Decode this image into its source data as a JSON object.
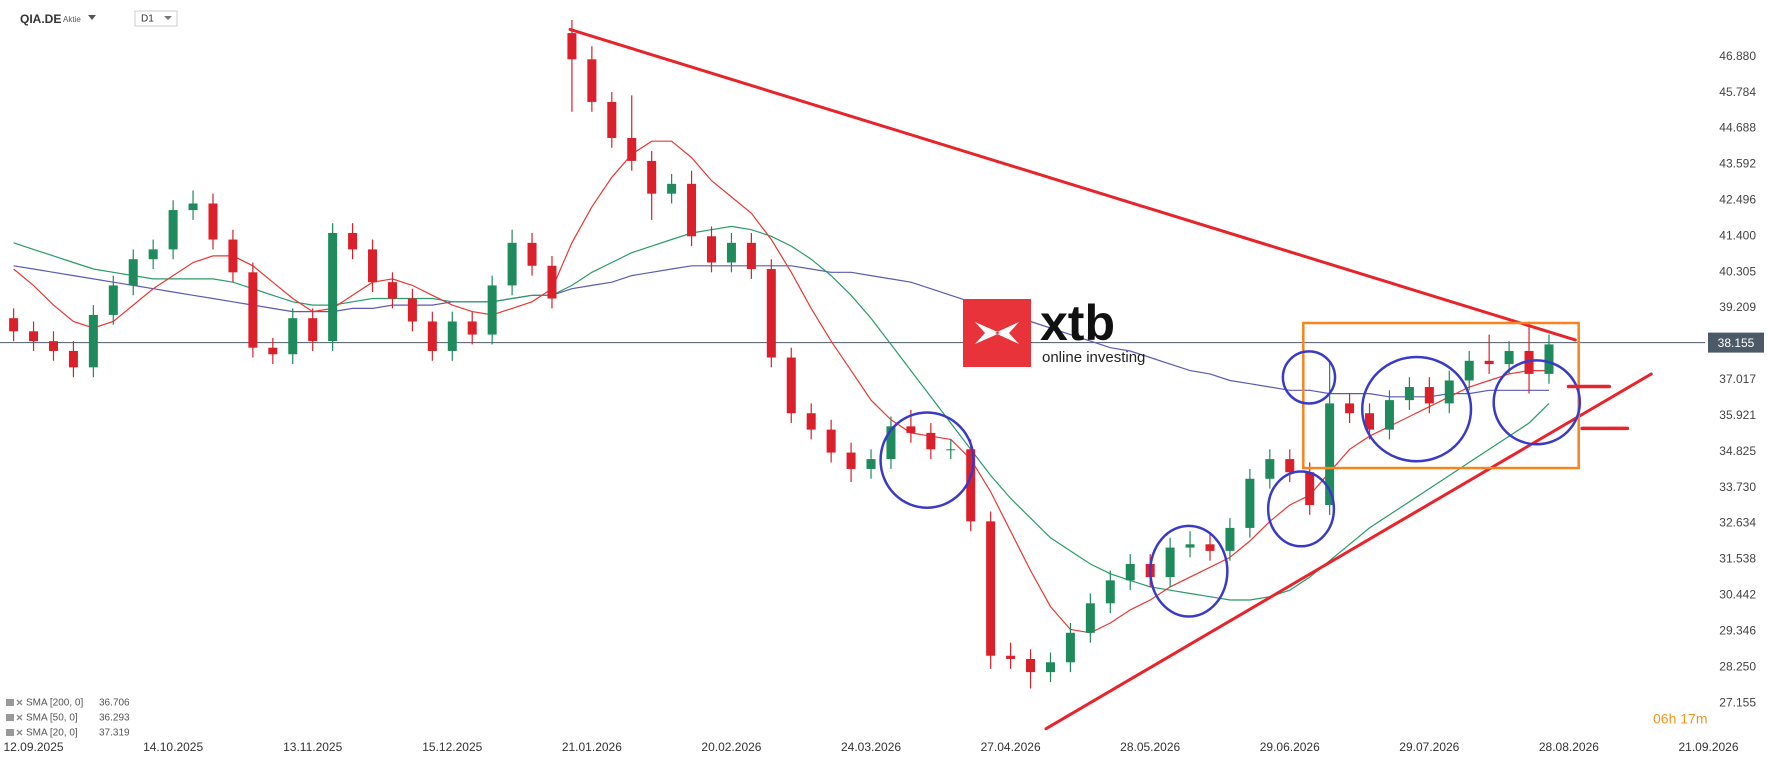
{
  "chart_data": {
    "type": "candlestick",
    "title": "QIA.DE",
    "subtitle": "Aktie",
    "timeframe": "D1",
    "categories": [
      null,
      "12.09.2025",
      null,
      null,
      null,
      null,
      null,
      null,
      "14.10.2025",
      null,
      null,
      null,
      null,
      null,
      null,
      "13.11.2025",
      null,
      null,
      null,
      null,
      null,
      null,
      "15.12.2025",
      null,
      null,
      null,
      null,
      null,
      null,
      "21.01.2026",
      null,
      null,
      null,
      null,
      null,
      null,
      "20.02.2026",
      null,
      null,
      null,
      null,
      null,
      null,
      "24.03.2026",
      null,
      null,
      null,
      null,
      null,
      null,
      "27.04.2026",
      null,
      null,
      null,
      null,
      null,
      null,
      "28.05.2026",
      null,
      null,
      null,
      null,
      null,
      null,
      "29.06.2026",
      null,
      null,
      null,
      null,
      null,
      null,
      "29.07.2026",
      null,
      null,
      null,
      null,
      null,
      null,
      "28.08.2026",
      null,
      null,
      null,
      null,
      null,
      null,
      "21.09.2026"
    ],
    "open": [
      38.9,
      38.5,
      38.2,
      37.9,
      37.4,
      39.0,
      39.9,
      40.7,
      41.0,
      42.2,
      42.4,
      41.3,
      40.3,
      38.0,
      37.8,
      38.9,
      38.2,
      41.5,
      41.0,
      40.0,
      39.5,
      38.8,
      37.9,
      38.8,
      38.4,
      39.9,
      41.2,
      40.5,
      47.6,
      46.8,
      45.5,
      44.4,
      43.7,
      42.7,
      43.0,
      41.4,
      40.6,
      41.2,
      40.4,
      37.7,
      36.0,
      35.5,
      34.8,
      34.3,
      34.6,
      35.6,
      35.4,
      34.9,
      34.9,
      32.7,
      28.6,
      28.5,
      28.1,
      28.4,
      29.3,
      30.2,
      30.9,
      31.4,
      31.0,
      31.9,
      32.0,
      31.8,
      32.5,
      34.0,
      34.6,
      34.2,
      33.2,
      36.3,
      36.0,
      35.5,
      36.4,
      36.8,
      36.3,
      37.0,
      37.6,
      37.5,
      37.9,
      37.2,
      null,
      null,
      null,
      null,
      null,
      null,
      null,
      null
    ],
    "high": [
      39.2,
      38.8,
      38.5,
      38.2,
      39.3,
      40.2,
      41.0,
      41.3,
      42.5,
      42.8,
      42.7,
      41.6,
      40.6,
      38.3,
      39.2,
      39.2,
      41.8,
      41.8,
      41.3,
      40.3,
      39.8,
      39.1,
      39.1,
      39.1,
      40.2,
      41.6,
      41.5,
      40.8,
      48.0,
      47.2,
      45.8,
      45.7,
      44.0,
      43.3,
      43.4,
      41.7,
      41.5,
      41.5,
      40.7,
      38.0,
      36.3,
      35.8,
      35.1,
      34.9,
      35.9,
      36.1,
      35.7,
      35.2,
      35.2,
      33.0,
      29.0,
      28.8,
      28.7,
      29.6,
      30.5,
      31.2,
      31.7,
      31.7,
      32.2,
      32.4,
      32.3,
      32.8,
      34.3,
      34.9,
      34.9,
      34.5,
      37.6,
      36.6,
      36.3,
      36.7,
      37.1,
      37.1,
      37.3,
      37.9,
      38.4,
      38.2,
      38.8,
      38.4,
      null,
      null,
      null,
      null,
      null,
      null,
      null,
      null
    ],
    "low": [
      38.2,
      37.9,
      37.6,
      37.1,
      37.1,
      38.7,
      39.6,
      40.4,
      40.7,
      41.9,
      41.0,
      40.0,
      37.7,
      37.5,
      37.5,
      37.9,
      37.9,
      40.7,
      39.7,
      39.2,
      38.5,
      37.6,
      37.6,
      38.1,
      38.1,
      39.6,
      40.2,
      39.2,
      45.2,
      45.2,
      44.1,
      43.4,
      41.9,
      42.4,
      41.1,
      40.3,
      40.3,
      40.1,
      37.4,
      35.7,
      35.2,
      34.5,
      33.9,
      34.0,
      34.3,
      35.1,
      34.6,
      34.6,
      32.4,
      28.2,
      28.2,
      27.6,
      27.8,
      28.1,
      29.0,
      29.9,
      30.6,
      30.7,
      30.7,
      31.6,
      31.5,
      31.5,
      32.2,
      33.7,
      33.9,
      32.9,
      32.9,
      35.7,
      35.2,
      35.2,
      36.1,
      36.0,
      36.0,
      36.7,
      37.2,
      37.2,
      36.6,
      36.9,
      null,
      null,
      null,
      null,
      null,
      null,
      null,
      null
    ],
    "close": [
      38.5,
      38.2,
      37.9,
      37.4,
      39.0,
      39.9,
      40.7,
      41.0,
      42.2,
      42.4,
      41.3,
      40.3,
      38.0,
      37.8,
      38.9,
      38.2,
      41.5,
      41.0,
      40.0,
      39.5,
      38.8,
      37.9,
      38.8,
      38.4,
      39.9,
      41.2,
      40.5,
      39.5,
      46.8,
      45.5,
      44.4,
      43.7,
      42.7,
      43.0,
      41.4,
      40.6,
      41.2,
      40.4,
      37.7,
      36.0,
      35.5,
      34.8,
      34.3,
      34.6,
      35.6,
      35.4,
      34.9,
      34.9,
      32.7,
      28.6,
      28.5,
      28.1,
      28.4,
      29.3,
      30.2,
      30.9,
      31.4,
      31.0,
      31.9,
      32.0,
      31.8,
      32.5,
      34.0,
      34.6,
      34.2,
      33.2,
      36.3,
      36.0,
      35.5,
      36.4,
      36.8,
      36.3,
      37.0,
      37.6,
      37.5,
      37.9,
      37.2,
      38.1,
      null,
      null,
      null,
      null,
      null,
      null,
      null,
      null
    ],
    "up_color": "#1f8a5b",
    "down_color": "#d9202b",
    "series": [
      {
        "name": "SMA [200, 0]",
        "last_value": 36.706,
        "color": "#5a5ab4",
        "values": [
          40.5,
          40.4,
          40.3,
          40.2,
          40.1,
          40.0,
          39.9,
          39.8,
          39.7,
          39.6,
          39.5,
          39.4,
          39.3,
          39.2,
          39.1,
          39.1,
          39.1,
          39.2,
          39.2,
          39.3,
          39.3,
          39.3,
          39.4,
          39.4,
          39.4,
          39.5,
          39.6,
          39.6,
          39.8,
          39.9,
          40.0,
          40.2,
          40.3,
          40.4,
          40.5,
          40.5,
          40.5,
          40.5,
          40.5,
          40.5,
          40.4,
          40.3,
          40.3,
          40.2,
          40.1,
          40.0,
          39.8,
          39.6,
          39.4,
          39.2,
          39.0,
          38.8,
          38.6,
          38.4,
          38.2,
          38.0,
          37.9,
          37.7,
          37.5,
          37.3,
          37.2,
          37.0,
          36.9,
          36.8,
          36.7,
          36.7,
          36.6,
          36.6,
          36.6,
          36.5,
          36.5,
          36.5,
          36.6,
          36.6,
          36.7,
          36.7,
          36.7,
          36.7,
          null,
          null,
          null,
          null,
          null,
          null,
          null,
          null
        ]
      },
      {
        "name": "SMA [50, 0]",
        "last_value": 36.293,
        "color": "#2a9a68",
        "values": [
          41.2,
          41.0,
          40.8,
          40.6,
          40.4,
          40.3,
          40.2,
          40.1,
          40.1,
          40.1,
          40.1,
          40.0,
          39.8,
          39.6,
          39.4,
          39.3,
          39.3,
          39.4,
          39.5,
          39.5,
          39.5,
          39.5,
          39.4,
          39.4,
          39.4,
          39.5,
          39.6,
          39.6,
          39.9,
          40.3,
          40.6,
          40.9,
          41.1,
          41.3,
          41.5,
          41.6,
          41.7,
          41.6,
          41.4,
          41.1,
          40.7,
          40.2,
          39.6,
          38.9,
          38.1,
          37.3,
          36.5,
          35.7,
          34.9,
          34.1,
          33.4,
          32.8,
          32.2,
          31.8,
          31.4,
          31.1,
          30.9,
          30.7,
          30.6,
          30.5,
          30.4,
          30.3,
          30.3,
          30.4,
          30.6,
          31.0,
          31.5,
          32.0,
          32.5,
          32.9,
          33.3,
          33.7,
          34.1,
          34.5,
          34.9,
          35.3,
          35.7,
          36.3,
          null,
          null,
          null,
          null,
          null,
          null,
          null,
          null
        ]
      },
      {
        "name": "SMA [20, 0]",
        "last_value": 37.319,
        "color": "#e53935",
        "values": [
          40.4,
          39.9,
          39.3,
          38.8,
          38.6,
          38.8,
          39.3,
          39.8,
          40.2,
          40.6,
          40.8,
          40.8,
          40.5,
          40.0,
          39.5,
          39.1,
          39.2,
          39.6,
          40.0,
          40.1,
          39.9,
          39.6,
          39.3,
          39.1,
          39.0,
          39.2,
          39.4,
          39.8,
          41.2,
          42.3,
          43.2,
          43.9,
          44.3,
          44.3,
          43.8,
          43.1,
          42.6,
          42.1,
          41.3,
          40.3,
          39.2,
          38.2,
          37.3,
          36.4,
          35.8,
          35.4,
          35.3,
          35.2,
          34.6,
          33.6,
          32.4,
          31.2,
          30.1,
          29.4,
          29.3,
          29.6,
          30.0,
          30.3,
          30.7,
          31.0,
          31.3,
          31.6,
          32.1,
          32.7,
          33.2,
          33.5,
          34.2,
          34.9,
          35.3,
          35.6,
          35.9,
          36.2,
          36.5,
          36.8,
          37.0,
          37.2,
          37.3,
          37.3,
          null,
          null,
          null,
          null,
          null,
          null,
          null,
          null
        ]
      }
    ],
    "ylim": [
      26.12,
      48.61
    ],
    "yticks": [
      {
        "value": 46.88,
        "label": "46.880"
      },
      45.784,
      44.688,
      43.592,
      42.496,
      {
        "value": 41.4,
        "label": "41.400"
      },
      40.305,
      39.209,
      37.017,
      35.921,
      34.825,
      {
        "value": 33.73,
        "label": "33.730"
      },
      32.634,
      31.538,
      30.442,
      29.346,
      {
        "value": 28.25,
        "label": "28.250"
      },
      27.155
    ],
    "grid": false,
    "last_price": 38.155,
    "countdown": "06h 17m",
    "watermark": {
      "brand": "xtb",
      "tagline": "online investing"
    }
  }
}
